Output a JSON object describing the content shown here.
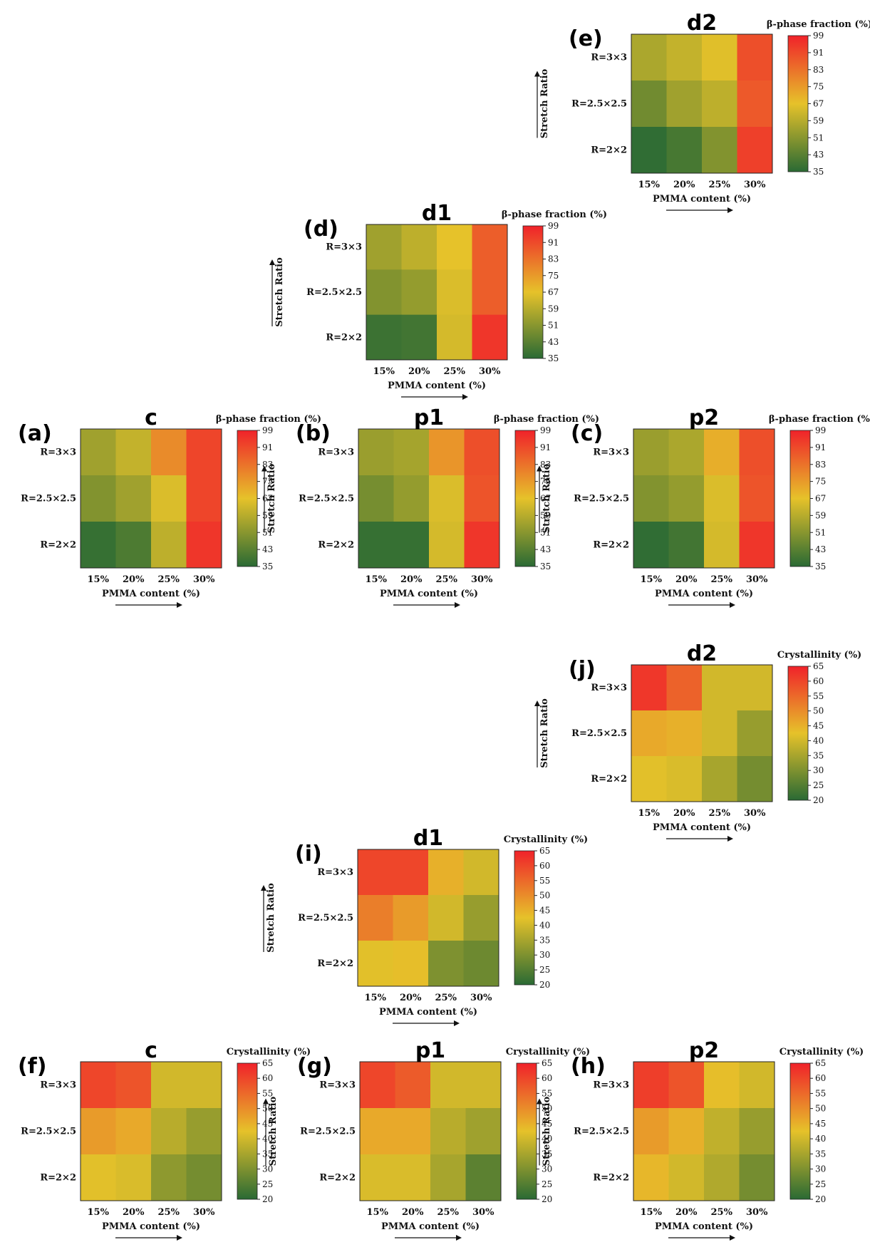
{
  "figure_title": "PVDF/PMMA heatmaps: β-phase fraction and crystallinity",
  "colors": {
    "low": "#2a6a34",
    "mid": "#e6c22a",
    "high": "#f0222a"
  },
  "chart_data": [
    {
      "id": "e",
      "type": "heatmap",
      "label": "(e)",
      "title": "d2",
      "colorbar_title": "β-phase fraction (%)",
      "colorbar_ticks": [
        "99",
        "91",
        "83",
        "75",
        "67",
        "59",
        "51",
        "43",
        "35"
      ],
      "vmin": 35,
      "vmax": 99,
      "xlabel": "PMMA content (%)",
      "ylabel": "Stretch Ratio",
      "x_categories": [
        "15%",
        "20%",
        "25%",
        "30%"
      ],
      "y_categories": [
        "R=3×3",
        "R=2.5×2.5",
        "R=2×2"
      ],
      "values": [
        [
          57,
          61,
          66,
          90
        ],
        [
          47,
          55,
          60,
          88
        ],
        [
          36,
          40,
          50,
          93
        ]
      ]
    },
    {
      "id": "d",
      "type": "heatmap",
      "label": "(d)",
      "title": "d1",
      "colorbar_title": "β-phase fraction (%)",
      "colorbar_ticks": [
        "99",
        "91",
        "83",
        "75",
        "67",
        "59",
        "51",
        "43",
        "35"
      ],
      "vmin": 35,
      "vmax": 99,
      "xlabel": "PMMA content (%)",
      "ylabel": "Stretch Ratio",
      "x_categories": [
        "15%",
        "20%",
        "25%",
        "30%"
      ],
      "y_categories": [
        "R=3×3",
        "R=2.5×2.5",
        "R=2×2"
      ],
      "values": [
        [
          55,
          60,
          67,
          87
        ],
        [
          50,
          53,
          65,
          87
        ],
        [
          38,
          39,
          64,
          95
        ]
      ]
    },
    {
      "id": "a",
      "type": "heatmap",
      "label": "(a)",
      "title": "c",
      "colorbar_title": "β-phase fraction (%)",
      "colorbar_ticks": [
        "99",
        "91",
        "83",
        "75",
        "67",
        "59",
        "51",
        "43",
        "35"
      ],
      "vmin": 35,
      "vmax": 99,
      "xlabel": "PMMA content (%)",
      "ylabel": "Stretch Ratio",
      "x_categories": [
        "15%",
        "20%",
        "25%",
        "30%"
      ],
      "y_categories": [
        "R=3×3",
        "R=2.5×2.5",
        "R=2×2"
      ],
      "values": [
        [
          55,
          61,
          78,
          92
        ],
        [
          50,
          55,
          65,
          92
        ],
        [
          37,
          41,
          60,
          95
        ]
      ]
    },
    {
      "id": "b",
      "type": "heatmap",
      "label": "(b)",
      "title": "p1",
      "colorbar_title": "β-phase fraction (%)",
      "colorbar_ticks": [
        "99",
        "91",
        "83",
        "75",
        "67",
        "59",
        "51",
        "43",
        "35"
      ],
      "vmin": 35,
      "vmax": 99,
      "xlabel": "PMMA content (%)",
      "ylabel": "Stretch Ratio",
      "x_categories": [
        "15%",
        "20%",
        "25%",
        "30%"
      ],
      "y_categories": [
        "R=3×3",
        "R=2.5×2.5",
        "R=2×2"
      ],
      "values": [
        [
          54,
          56,
          76,
          90
        ],
        [
          48,
          53,
          65,
          89
        ],
        [
          37,
          37,
          64,
          95
        ]
      ]
    },
    {
      "id": "c",
      "type": "heatmap",
      "label": "(c)",
      "title": "p2",
      "colorbar_title": "β-phase fraction (%)",
      "colorbar_ticks": [
        "99",
        "91",
        "83",
        "75",
        "67",
        "59",
        "51",
        "43",
        "35"
      ],
      "vmin": 35,
      "vmax": 99,
      "xlabel": "PMMA content (%)",
      "ylabel": "Stretch Ratio",
      "x_categories": [
        "15%",
        "20%",
        "25%",
        "30%"
      ],
      "y_categories": [
        "R=3×3",
        "R=2.5×2.5",
        "R=2×2"
      ],
      "values": [
        [
          54,
          57,
          71,
          90
        ],
        [
          50,
          53,
          65,
          89
        ],
        [
          36,
          39,
          64,
          95
        ]
      ]
    },
    {
      "id": "j",
      "type": "heatmap",
      "label": "(j)",
      "title": "d2",
      "colorbar_title": "Crystallinity (%)",
      "colorbar_ticks": [
        "65",
        "60",
        "55",
        "50",
        "45",
        "40",
        "35",
        "30",
        "25",
        "20"
      ],
      "vmin": 20,
      "vmax": 65,
      "xlabel": "PMMA content (%)",
      "ylabel": "Stretch Ratio",
      "x_categories": [
        "15%",
        "20%",
        "25%",
        "30%"
      ],
      "y_categories": [
        "R=3×3",
        "R=2.5×2.5",
        "R=2×2"
      ],
      "values": [
        [
          62,
          56,
          40,
          40
        ],
        [
          46,
          45,
          40,
          33
        ],
        [
          42,
          41,
          35,
          29
        ]
      ]
    },
    {
      "id": "i",
      "type": "heatmap",
      "label": "(i)",
      "title": "d1",
      "colorbar_title": "Crystallinity (%)",
      "colorbar_ticks": [
        "65",
        "60",
        "55",
        "50",
        "45",
        "40",
        "35",
        "30",
        "25",
        "20"
      ],
      "vmin": 20,
      "vmax": 65,
      "xlabel": "PMMA content (%)",
      "ylabel": "Stretch Ratio",
      "x_categories": [
        "15%",
        "20%",
        "25%",
        "30%"
      ],
      "y_categories": [
        "R=3×3",
        "R=2.5×2.5",
        "R=2×2"
      ],
      "values": [
        [
          60,
          60,
          45,
          40
        ],
        [
          52,
          48,
          40,
          33
        ],
        [
          42,
          43,
          30,
          28
        ]
      ]
    },
    {
      "id": "f",
      "type": "heatmap",
      "label": "(f)",
      "title": "c",
      "colorbar_title": "Crystallinity (%)",
      "colorbar_ticks": [
        "65",
        "60",
        "55",
        "50",
        "45",
        "40",
        "35",
        "30",
        "25",
        "20"
      ],
      "vmin": 20,
      "vmax": 65,
      "xlabel": "PMMA content (%)",
      "ylabel": "Stretch Ratio",
      "x_categories": [
        "15%",
        "20%",
        "25%",
        "30%"
      ],
      "y_categories": [
        "R=3×3",
        "R=2.5×2.5",
        "R=2×2"
      ],
      "values": [
        [
          60,
          58,
          40,
          40
        ],
        [
          48,
          46,
          37,
          33
        ],
        [
          42,
          41,
          32,
          29
        ]
      ]
    },
    {
      "id": "g",
      "type": "heatmap",
      "label": "(g)",
      "title": "p1",
      "colorbar_title": "Crystallinity (%)",
      "colorbar_ticks": [
        "65",
        "60",
        "55",
        "50",
        "45",
        "40",
        "35",
        "30",
        "25",
        "20"
      ],
      "vmin": 20,
      "vmax": 65,
      "xlabel": "PMMA content (%)",
      "ylabel": "Stretch Ratio",
      "x_categories": [
        "15%",
        "20%",
        "25%",
        "30%"
      ],
      "y_categories": [
        "R=3×3",
        "R=2.5×2.5",
        "R=2×2"
      ],
      "values": [
        [
          60,
          57,
          40,
          40
        ],
        [
          46,
          46,
          37,
          34
        ],
        [
          41,
          41,
          35,
          26
        ]
      ]
    },
    {
      "id": "h",
      "type": "heatmap",
      "label": "(h)",
      "title": "p2",
      "colorbar_title": "Crystallinity (%)",
      "colorbar_ticks": [
        "65",
        "60",
        "55",
        "50",
        "45",
        "40",
        "35",
        "30",
        "25",
        "20"
      ],
      "vmin": 20,
      "vmax": 65,
      "xlabel": "PMMA content (%)",
      "ylabel": "Stretch Ratio",
      "x_categories": [
        "15%",
        "20%",
        "25%",
        "30%"
      ],
      "y_categories": [
        "R=3×3",
        "R=2.5×2.5",
        "R=2×2"
      ],
      "values": [
        [
          61,
          58,
          43,
          40
        ],
        [
          48,
          45,
          38,
          33
        ],
        [
          44,
          40,
          36,
          29
        ]
      ]
    }
  ]
}
